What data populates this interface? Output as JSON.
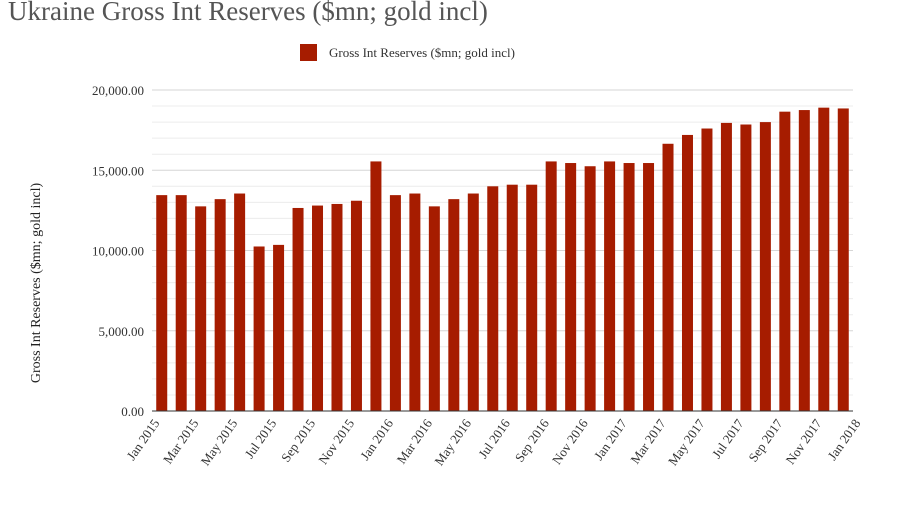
{
  "colors": {
    "bar": "#a61c00",
    "grid": "#d6d6d6",
    "axis": "#333333",
    "text": "#333333"
  },
  "chart_data": {
    "type": "bar",
    "title": "Ukraine Gross Int Reserves ($mn; gold incl)",
    "xlabel": "",
    "ylabel": "Gross Int Reserves ($mn; gold incl)",
    "ylim": [
      0,
      20000
    ],
    "yticks": [
      "0.00",
      "5,000.00",
      "10,000.00",
      "15,000.00",
      "20,000.00"
    ],
    "grid": true,
    "legend_position": "top-center",
    "xtick_labels": [
      "Jan 2015",
      "Mar 2015",
      "May 2015",
      "Jul 2015",
      "Sep 2015",
      "Nov 2015",
      "Jan 2016",
      "Mar 2016",
      "May 2016",
      "Jul 2016",
      "Sep 2016",
      "Nov 2016",
      "Jan 2017",
      "Mar 2017",
      "May 2017",
      "Jul 2017",
      "Sep 2017",
      "Nov 2017",
      "Jan 2018"
    ],
    "categories": [
      "Jan 2015",
      "Feb 2015",
      "Mar 2015",
      "Apr 2015",
      "May 2015",
      "Jun 2015",
      "Jul 2015",
      "Aug 2015",
      "Sep 2015",
      "Oct 2015",
      "Nov 2015",
      "Dec 2015",
      "Jan 2016",
      "Feb 2016",
      "Mar 2016",
      "Apr 2016",
      "May 2016",
      "Jun 2016",
      "Jul 2016",
      "Aug 2016",
      "Sep 2016",
      "Oct 2016",
      "Nov 2016",
      "Dec 2016",
      "Jan 2017",
      "Feb 2017",
      "Mar 2017",
      "Apr 2017",
      "May 2017",
      "Jun 2017",
      "Jul 2017",
      "Aug 2017",
      "Sep 2017",
      "Oct 2017",
      "Nov 2017",
      "Dec 2017"
    ],
    "series": [
      {
        "name": "Gross Int Reserves ($mn; gold incl)",
        "values": [
          13450,
          13450,
          12750,
          13200,
          13550,
          10250,
          10350,
          12650,
          12800,
          12900,
          13100,
          15550,
          13450,
          13550,
          12750,
          13200,
          13550,
          14000,
          14100,
          14100,
          15550,
          15450,
          15250,
          15550,
          15450,
          15450,
          16650,
          17200,
          17600,
          17950,
          17850,
          18000,
          18650,
          18750,
          18900,
          18850
        ]
      }
    ]
  }
}
